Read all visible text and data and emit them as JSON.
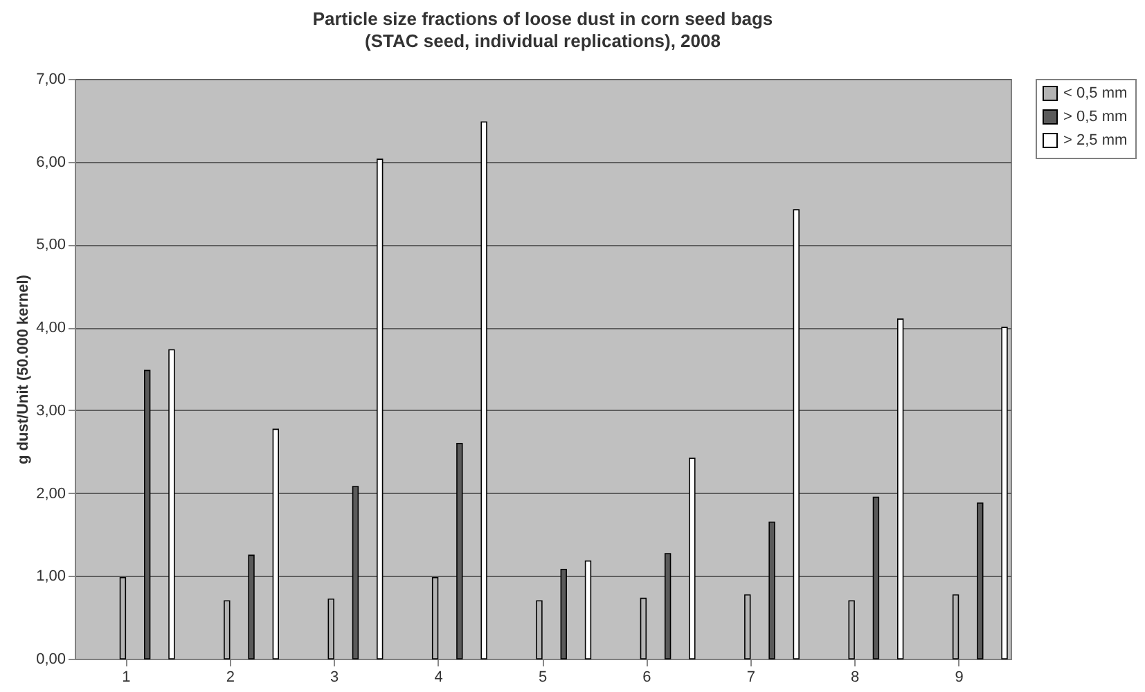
{
  "chart_data": {
    "type": "bar",
    "title": "Particle size fractions of loose dust in corn seed bags",
    "subtitle": "(STAC seed, individual replications), 2008",
    "ylabel": "g dust/Unit (50.000 kernel)",
    "categories": [
      "1",
      "2",
      "3",
      "4",
      "5",
      "6",
      "7",
      "8",
      "9"
    ],
    "series": [
      {
        "name": "< 0,5 mm",
        "color": "#b4b4b4",
        "values": [
          0.98,
          0.7,
          0.72,
          0.98,
          0.7,
          0.73,
          0.77,
          0.7,
          0.77
        ]
      },
      {
        "name": "> 0,5 mm",
        "color": "#5a5a5a",
        "values": [
          3.48,
          1.25,
          2.08,
          2.6,
          1.08,
          1.27,
          1.65,
          1.95,
          1.88
        ]
      },
      {
        "name": "> 2,5 mm",
        "color": "#ffffff",
        "values": [
          3.73,
          2.77,
          6.03,
          6.48,
          1.18,
          2.42,
          5.42,
          4.1,
          4.0
        ]
      }
    ],
    "ylim": [
      0,
      7
    ],
    "yticks": [
      {
        "value": 0,
        "label": "0,00"
      },
      {
        "value": 1,
        "label": "1,00"
      },
      {
        "value": 2,
        "label": "2,00"
      },
      {
        "value": 3,
        "label": "3,00"
      },
      {
        "value": 4,
        "label": "4,00"
      },
      {
        "value": 5,
        "label": "5,00"
      },
      {
        "value": 6,
        "label": "6,00"
      },
      {
        "value": 7,
        "label": "7,00"
      }
    ],
    "grid": "y",
    "legend": "right"
  }
}
